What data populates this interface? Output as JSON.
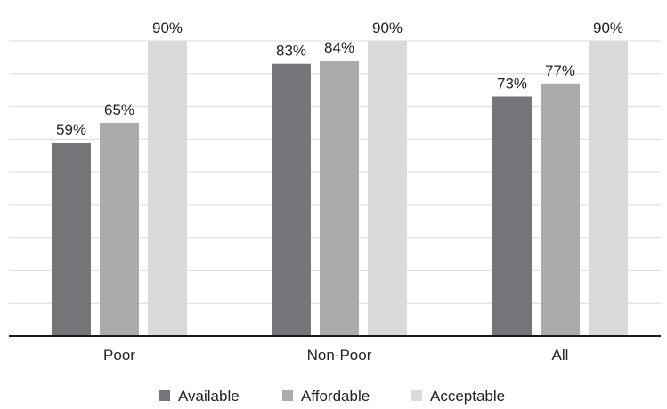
{
  "chart_data": {
    "type": "bar",
    "categories": [
      "Poor",
      "Non-Poor",
      "All"
    ],
    "series": [
      {
        "name": "Available",
        "values": [
          59,
          83,
          73
        ],
        "labels": [
          "59%",
          "83%",
          "73%"
        ],
        "color": "#76767a"
      },
      {
        "name": "Affordable",
        "values": [
          65,
          84,
          77
        ],
        "labels": [
          "65%",
          "84%",
          "77%"
        ],
        "color": "#ababab"
      },
      {
        "name": "Acceptable",
        "values": [
          90,
          90,
          90
        ],
        "labels": [
          "90%",
          "90%",
          "90%"
        ],
        "color": "#dadada"
      }
    ],
    "title": "",
    "xlabel": "",
    "ylabel": "",
    "ylim": [
      0,
      90
    ],
    "grid": true,
    "legend_position": "bottom"
  }
}
